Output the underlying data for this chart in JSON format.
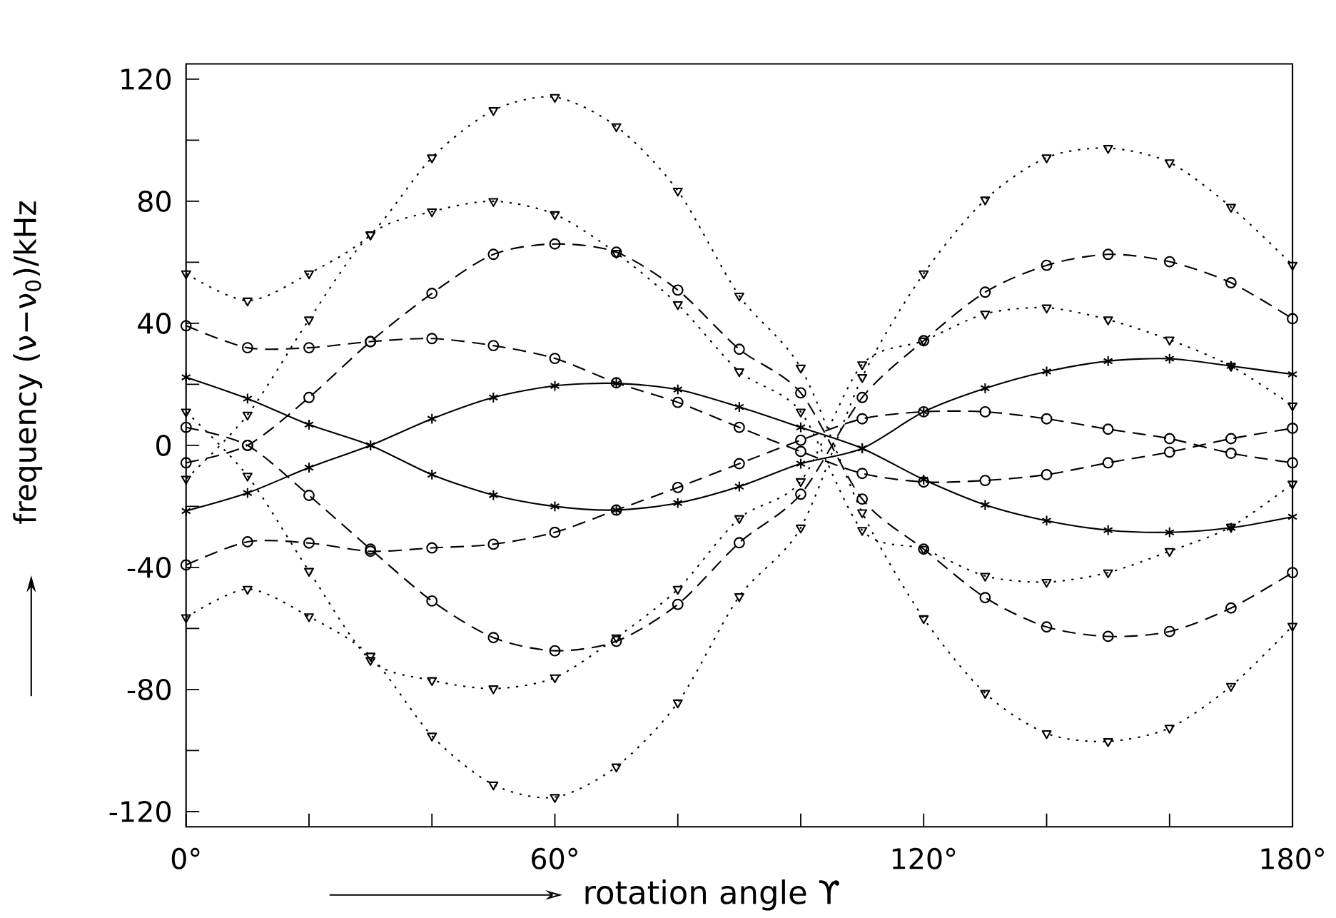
{
  "chart_data": {
    "type": "line",
    "xlabel": "rotation angle ϒ",
    "ylabel": "frequency  (ν−ν$_{0}$)/kHz",
    "x": [
      0,
      10,
      20,
      30,
      40,
      50,
      60,
      70,
      80,
      90,
      100,
      110,
      120,
      130,
      140,
      150,
      160,
      170,
      180
    ],
    "xlim": [
      0,
      180
    ],
    "xticks": [
      {
        "value": 0,
        "label": "0°"
      },
      {
        "value": 20,
        "label": null
      },
      {
        "value": 40,
        "label": null
      },
      {
        "value": 60,
        "label": "60°"
      },
      {
        "value": 80,
        "label": null
      },
      {
        "value": 100,
        "label": null
      },
      {
        "value": 120,
        "label": "120°"
      },
      {
        "value": 140,
        "label": null
      },
      {
        "value": 160,
        "label": null
      },
      {
        "value": 180,
        "label": "180°"
      }
    ],
    "ylim": [
      -125,
      125
    ],
    "yticks": [
      -120,
      {
        "value": -100,
        "label": null
      },
      -80,
      {
        "value": -60,
        "label": null
      },
      -40,
      {
        "value": -20,
        "label": null
      },
      0,
      {
        "value": 20,
        "label": null
      },
      40,
      {
        "value": 60,
        "label": null
      },
      80,
      {
        "value": 100,
        "label": null
      },
      120
    ],
    "grid": false,
    "series": [
      {
        "color": "#000000",
        "marker": "cross",
        "line_style": "solid",
        "values": [
          22.3,
          15.3,
          6.8,
          0,
          -9.6,
          -16.3,
          -20,
          -21.2,
          -18.9,
          -13.5,
          -6,
          -1,
          11,
          18.7,
          24.2,
          27.6,
          28.4,
          26,
          23.3
        ]
      },
      {
        "color": "#000000",
        "marker": "cross",
        "line_style": "solid",
        "values": [
          -21.5,
          -15.6,
          -7.3,
          0,
          8.7,
          15.7,
          19.5,
          20.3,
          18.3,
          12.6,
          5.9,
          -1,
          -11.2,
          -19.5,
          -24.7,
          -27.8,
          -28.5,
          -27,
          -23.4
        ]
      },
      {
        "color": "#000000",
        "marker": "circle",
        "line_style": "dashed",
        "values": [
          39.2,
          32,
          32,
          34,
          35,
          32.7,
          28.5,
          20.5,
          14.1,
          5.9,
          -2,
          -9.2,
          -12,
          -11.5,
          -9.6,
          -5.7,
          -2.2,
          2.2,
          5.6
        ]
      },
      {
        "color": "#000000",
        "marker": "circle",
        "line_style": "dashed",
        "values": [
          -39.2,
          -31.6,
          -32,
          -34.7,
          -33.6,
          -32.4,
          -28.5,
          -21.2,
          -13.8,
          -6,
          1.7,
          8.7,
          11,
          11,
          8.7,
          5.3,
          2.2,
          -2.6,
          -5.7
        ]
      },
      {
        "color": "#000000",
        "marker": "circle",
        "line_style": "dashed",
        "values": [
          -5.7,
          0,
          15.7,
          34,
          49.8,
          62.6,
          66,
          63.3,
          50.9,
          31.5,
          17.2,
          -17.6,
          -34,
          -49.9,
          -59.5,
          -62.6,
          -61,
          -53.3,
          -41.7
        ]
      },
      {
        "color": "#000000",
        "marker": "circle",
        "line_style": "dashed",
        "values": [
          5.9,
          0,
          -16.4,
          -34,
          -51,
          -63,
          -67.3,
          -64.2,
          -52.1,
          -31.9,
          -16,
          15.7,
          34.3,
          50.2,
          59,
          62.6,
          60.2,
          53.3,
          41.5
        ]
      },
      {
        "color": "#000000",
        "marker": "triangle",
        "line_style": "dotted",
        "values": [
          56.3,
          47.4,
          56.3,
          69.1,
          94.3,
          109.8,
          114.1,
          104.5,
          83.4,
          49,
          25.4,
          -22,
          -56.7,
          -81.2,
          -94.4,
          -97,
          -92.6,
          -78.9,
          -59.2
        ]
      },
      {
        "color": "#000000",
        "marker": "triangle",
        "line_style": "dotted",
        "values": [
          -56.4,
          -47.1,
          -56.1,
          -69,
          -95.2,
          -111.2,
          -115.3,
          -105.3,
          -84.3,
          -49.5,
          -27,
          22.3,
          56.3,
          80.5,
          94.3,
          97.4,
          92.7,
          78.1,
          59.1
        ]
      },
      {
        "color": "#000000",
        "marker": "triangle",
        "line_style": "dotted",
        "values": [
          -11,
          10,
          41.2,
          69,
          76.6,
          80,
          75.7,
          63,
          46.2,
          24.2,
          11,
          -27.8,
          -34,
          -42.8,
          -44.8,
          -41.7,
          -34.7,
          -26.7,
          -12.6
        ]
      },
      {
        "color": "#000000",
        "marker": "triangle",
        "line_style": "dotted",
        "values": [
          11,
          -10,
          -41.2,
          -70.4,
          -77,
          -79.7,
          -76.1,
          -63,
          -47.1,
          -23.9,
          -11.8,
          26.5,
          34.3,
          43.1,
          45.1,
          41.2,
          34.6,
          26,
          13
        ]
      }
    ]
  }
}
